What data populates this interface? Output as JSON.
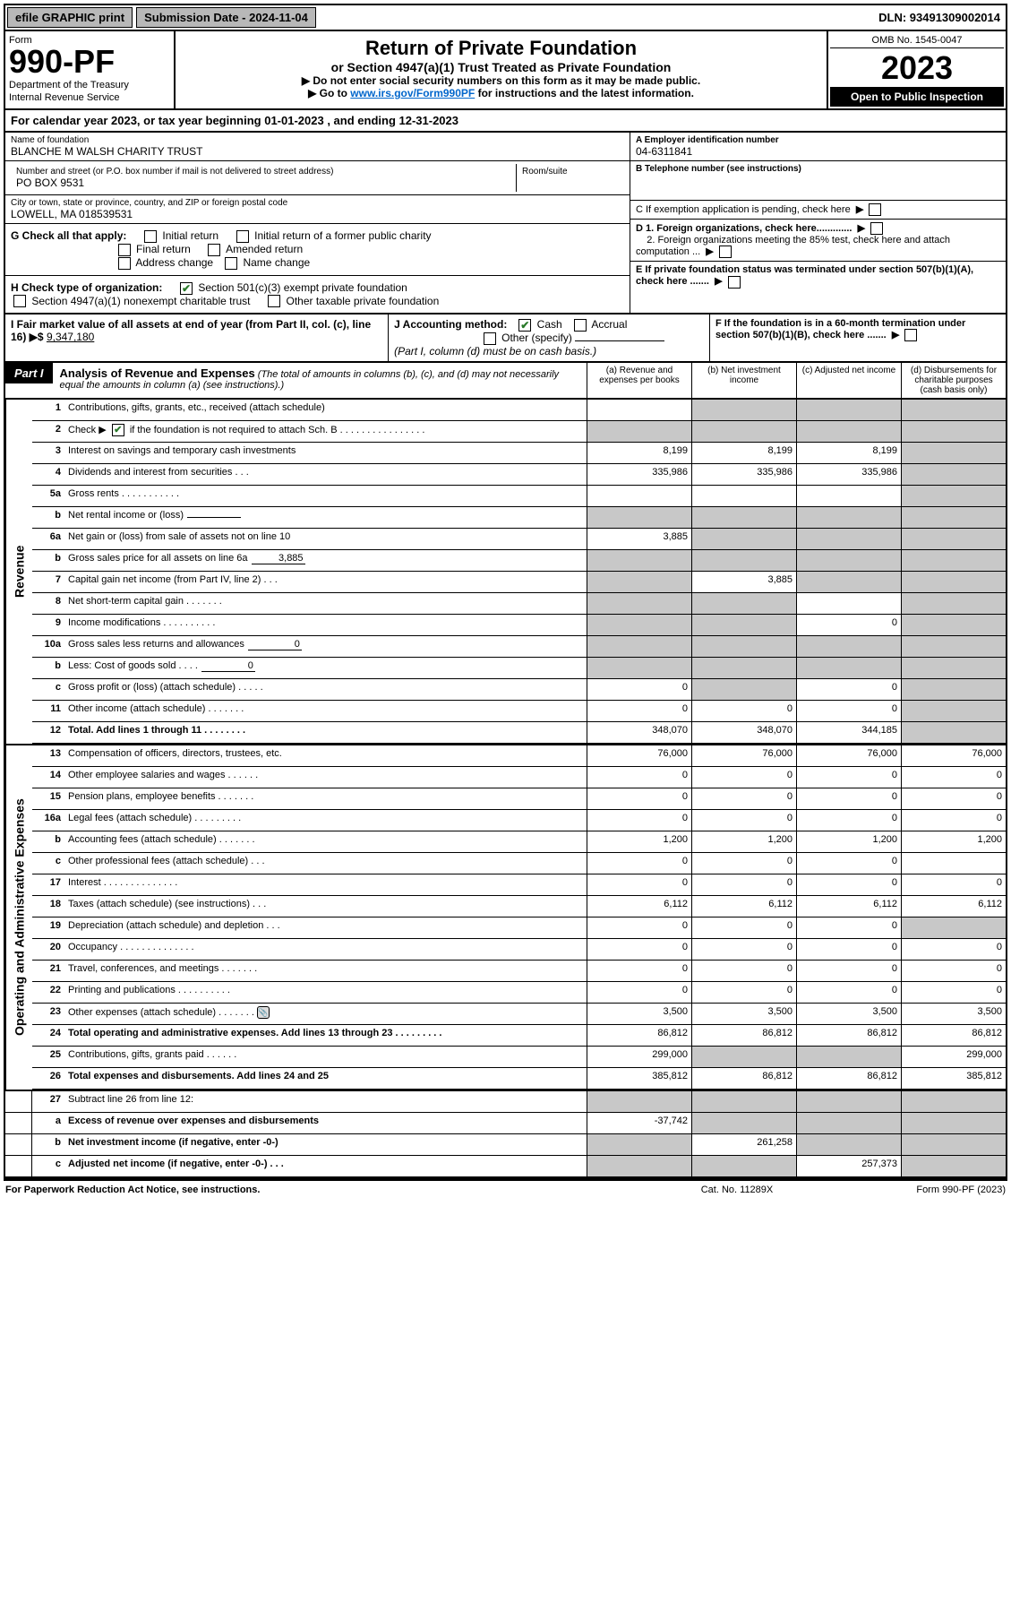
{
  "top": {
    "efile": "efile GRAPHIC print",
    "sub_date_lbl": "Submission Date - 2024-11-04",
    "dln": "DLN: 93491309002014"
  },
  "header": {
    "form_lbl": "Form",
    "form_no": "990-PF",
    "dept": "Department of the Treasury",
    "irs": "Internal Revenue Service",
    "title": "Return of Private Foundation",
    "subtitle": "or Section 4947(a)(1) Trust Treated as Private Foundation",
    "note1": "▶ Do not enter social security numbers on this form as it may be made public.",
    "note2_pre": "▶ Go to ",
    "note2_link": "www.irs.gov/Form990PF",
    "note2_post": " for instructions and the latest information.",
    "omb": "OMB No. 1545-0047",
    "year": "2023",
    "inspect": "Open to Public Inspection"
  },
  "calyear": "For calendar year 2023, or tax year beginning 01-01-2023                         , and ending 12-31-2023",
  "info": {
    "name_lbl": "Name of foundation",
    "name": "BLANCHE M WALSH CHARITY TRUST",
    "addr_lbl": "Number and street (or P.O. box number if mail is not delivered to street address)",
    "addr": "PO BOX 9531",
    "room_lbl": "Room/suite",
    "city_lbl": "City or town, state or province, country, and ZIP or foreign postal code",
    "city": "LOWELL, MA  018539531",
    "ein_lbl": "A Employer identification number",
    "ein": "04-6311841",
    "tel_lbl": "B Telephone number (see instructions)",
    "c_lbl": "C If exemption application is pending, check here",
    "d1": "D 1. Foreign organizations, check here.............",
    "d2": "2. Foreign organizations meeting the 85% test, check here and attach computation ...",
    "e_lbl": "E  If private foundation status was terminated under section 507(b)(1)(A), check here .......",
    "f_lbl": "F  If the foundation is in a 60-month termination under section 507(b)(1)(B), check here ......."
  },
  "g": {
    "lbl": "G Check all that apply:",
    "initial": "Initial return",
    "initial_former": "Initial return of a former public charity",
    "final": "Final return",
    "amended": "Amended return",
    "addr_chg": "Address change",
    "name_chg": "Name change"
  },
  "h": {
    "lbl": "H Check type of organization:",
    "501c3": "Section 501(c)(3) exempt private foundation",
    "4947": "Section 4947(a)(1) nonexempt charitable trust",
    "other_tax": "Other taxable private foundation"
  },
  "i": {
    "lbl": "I Fair market value of all assets at end of year (from Part II, col. (c), line 16)",
    "arrow": "▶$",
    "val": "9,347,180"
  },
  "j": {
    "lbl": "J Accounting method:",
    "cash": "Cash",
    "accrual": "Accrual",
    "other": "Other (specify)",
    "note": "(Part I, column (d) must be on cash basis.)"
  },
  "part1": {
    "lbl": "Part I",
    "title": "Analysis of Revenue and Expenses",
    "desc": "(The total of amounts in columns (b), (c), and (d) may not necessarily equal the amounts in column (a) (see instructions).)",
    "cols": {
      "a": "(a)   Revenue and expenses per books",
      "b": "(b)   Net investment income",
      "c": "(c)   Adjusted net income",
      "d": "(d)   Disbursements for charitable purposes (cash basis only)"
    }
  },
  "side": {
    "rev": "Revenue",
    "exp": "Operating and Administrative Expenses"
  },
  "rows": {
    "r1": {
      "n": "1",
      "d": "Contributions, gifts, grants, etc., received (attach schedule)",
      "a": "",
      "b": "shade",
      "c": "shade",
      "dd": "shade"
    },
    "r2": {
      "n": "2",
      "d_pre": "Check ▶ ",
      "d_post": " if the foundation is not required to attach Sch. B   .   .   .   .   .   .   .   .   .   .   .   .   .   .   .   .",
      "a": "shade",
      "b": "shade",
      "c": "shade",
      "dd": "shade"
    },
    "r3": {
      "n": "3",
      "d": "Interest on savings and temporary cash investments",
      "a": "8,199",
      "b": "8,199",
      "c": "8,199",
      "dd": "shade"
    },
    "r4": {
      "n": "4",
      "d": "Dividends and interest from securities   .    .    .",
      "a": "335,986",
      "b": "335,986",
      "c": "335,986",
      "dd": "shade"
    },
    "r5a": {
      "n": "5a",
      "d": "Gross rents    .    .    .    .    .    .    .    .    .    .    .",
      "a": "",
      "b": "",
      "c": "",
      "dd": "shade"
    },
    "r5b": {
      "n": "b",
      "d": "Net rental income or (loss)",
      "inline": "",
      "a": "shade",
      "b": "shade",
      "c": "shade",
      "dd": "shade"
    },
    "r6a": {
      "n": "6a",
      "d": "Net gain or (loss) from sale of assets not on line 10",
      "a": "3,885",
      "b": "shade",
      "c": "shade",
      "dd": "shade"
    },
    "r6b": {
      "n": "b",
      "d": "Gross sales price for all assets on line 6a",
      "inline": "3,885",
      "a": "shade",
      "b": "shade",
      "c": "shade",
      "dd": "shade"
    },
    "r7": {
      "n": "7",
      "d": "Capital gain net income (from Part IV, line 2)    .    .    .",
      "a": "shade",
      "b": "3,885",
      "c": "shade",
      "dd": "shade"
    },
    "r8": {
      "n": "8",
      "d": "Net short-term capital gain   .    .    .    .    .    .    .",
      "a": "shade",
      "b": "shade",
      "c": "",
      "dd": "shade"
    },
    "r9": {
      "n": "9",
      "d": "Income modifications  .    .    .    .    .    .    .    .    .    .",
      "a": "shade",
      "b": "shade",
      "c": "0",
      "dd": "shade"
    },
    "r10a": {
      "n": "10a",
      "d": "Gross sales less returns and allowances",
      "inline": "0",
      "a": "shade",
      "b": "shade",
      "c": "shade",
      "dd": "shade"
    },
    "r10b": {
      "n": "b",
      "d": "Less: Cost of goods sold    .    .    .    .",
      "inline": "0",
      "a": "shade",
      "b": "shade",
      "c": "shade",
      "dd": "shade"
    },
    "r10c": {
      "n": "c",
      "d": "Gross profit or (loss) (attach schedule)     .    .    .    .    .",
      "a": "0",
      "b": "shade",
      "c": "0",
      "dd": "shade"
    },
    "r11": {
      "n": "11",
      "d": "Other income (attach schedule)    .    .    .    .    .    .    .",
      "a": "0",
      "b": "0",
      "c": "0",
      "dd": "shade"
    },
    "r12": {
      "n": "12",
      "d": "Total. Add lines 1 through 11    .    .    .    .    .    .    .    .",
      "bold": true,
      "a": "348,070",
      "b": "348,070",
      "c": "344,185",
      "dd": "shade"
    },
    "r13": {
      "n": "13",
      "d": "Compensation of officers, directors, trustees, etc.",
      "a": "76,000",
      "b": "76,000",
      "c": "76,000",
      "dd": "76,000"
    },
    "r14": {
      "n": "14",
      "d": "Other employee salaries and wages     .    .    .    .    .    .",
      "a": "0",
      "b": "0",
      "c": "0",
      "dd": "0"
    },
    "r15": {
      "n": "15",
      "d": "Pension plans, employee benefits  .    .    .    .    .    .    .",
      "a": "0",
      "b": "0",
      "c": "0",
      "dd": "0"
    },
    "r16a": {
      "n": "16a",
      "d": "Legal fees (attach schedule) .    .    .    .    .    .    .    .    .",
      "a": "0",
      "b": "0",
      "c": "0",
      "dd": "0"
    },
    "r16b": {
      "n": "b",
      "d": "Accounting fees (attach schedule)  .    .    .    .    .    .    .",
      "a": "1,200",
      "b": "1,200",
      "c": "1,200",
      "dd": "1,200"
    },
    "r16c": {
      "n": "c",
      "d": "Other professional fees (attach schedule)     .    .    .",
      "a": "0",
      "b": "0",
      "c": "0",
      "dd": ""
    },
    "r17": {
      "n": "17",
      "d": "Interest   .    .    .    .    .    .    .    .    .    .    .    .    .    .",
      "a": "0",
      "b": "0",
      "c": "0",
      "dd": "0"
    },
    "r18": {
      "n": "18",
      "d": "Taxes (attach schedule) (see instructions)     .    .    .",
      "a": "6,112",
      "b": "6,112",
      "c": "6,112",
      "dd": "6,112"
    },
    "r19": {
      "n": "19",
      "d": "Depreciation (attach schedule) and depletion    .    .    .",
      "a": "0",
      "b": "0",
      "c": "0",
      "dd": "shade"
    },
    "r20": {
      "n": "20",
      "d": "Occupancy .    .    .    .    .    .    .    .    .    .    .    .    .    .",
      "a": "0",
      "b": "0",
      "c": "0",
      "dd": "0"
    },
    "r21": {
      "n": "21",
      "d": "Travel, conferences, and meetings  .    .    .    .    .    .    .",
      "a": "0",
      "b": "0",
      "c": "0",
      "dd": "0"
    },
    "r22": {
      "n": "22",
      "d": "Printing and publications  .    .    .    .    .    .    .    .    .    .",
      "a": "0",
      "b": "0",
      "c": "0",
      "dd": "0"
    },
    "r23": {
      "n": "23",
      "d": "Other expenses (attach schedule)  .    .    .    .    .    .    .",
      "icon": true,
      "a": "3,500",
      "b": "3,500",
      "c": "3,500",
      "dd": "3,500"
    },
    "r24": {
      "n": "24",
      "d": "Total operating and administrative expenses. Add lines 13 through 23    .    .    .    .    .    .    .    .    .",
      "bold": true,
      "a": "86,812",
      "b": "86,812",
      "c": "86,812",
      "dd": "86,812"
    },
    "r25": {
      "n": "25",
      "d": "Contributions, gifts, grants paid     .    .    .    .    .    .",
      "a": "299,000",
      "b": "shade",
      "c": "shade",
      "dd": "299,000"
    },
    "r26": {
      "n": "26",
      "d": "Total expenses and disbursements. Add lines 24 and 25",
      "bold": true,
      "a": "385,812",
      "b": "86,812",
      "c": "86,812",
      "dd": "385,812"
    },
    "r27": {
      "n": "27",
      "d": "Subtract line 26 from line 12:",
      "a": "shade",
      "b": "shade",
      "c": "shade",
      "dd": "shade"
    },
    "r27a": {
      "n": "a",
      "d": "Excess of revenue over expenses and disbursements",
      "bold": true,
      "a": "-37,742",
      "b": "shade",
      "c": "shade",
      "dd": "shade"
    },
    "r27b": {
      "n": "b",
      "d": "Net investment income (if negative, enter -0-)",
      "bold": true,
      "a": "shade",
      "b": "261,258",
      "c": "shade",
      "dd": "shade"
    },
    "r27c": {
      "n": "c",
      "d": "Adjusted net income (if negative, enter -0-)    .    .    .",
      "bold": true,
      "a": "shade",
      "b": "shade",
      "c": "257,373",
      "dd": "shade"
    }
  },
  "footer": {
    "l": "For Paperwork Reduction Act Notice, see instructions.",
    "m": "Cat. No. 11289X",
    "r": "Form 990-PF (2023)"
  }
}
